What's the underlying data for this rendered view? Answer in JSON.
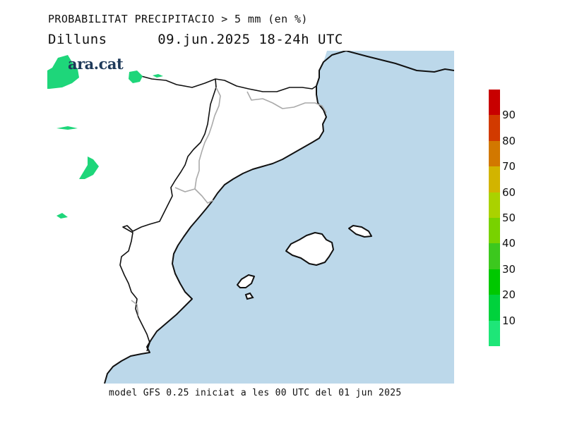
{
  "title": "PROBABILITAT PRECIPITACIO > 5 mm (en %)",
  "day": "Dilluns",
  "datetime": "09.jun.2025 18-24h UTC",
  "logo": "ara.cat",
  "footer": "model GFS 0.25 iniciat a les 00 UTC del 01 jun 2025",
  "colors": {
    "sea": "#bcd8ea",
    "land": "#ffffff",
    "coast": "#111111",
    "border": "#aaaaaa",
    "precip_10_20": "#1ed67a"
  },
  "legend": {
    "colors": [
      "#c80000",
      "#d23a00",
      "#d27800",
      "#d2b400",
      "#aad200",
      "#78d200",
      "#3cc81e",
      "#00c800",
      "#00d23c",
      "#1ee678"
    ],
    "labels": [
      "90",
      "80",
      "70",
      "60",
      "50",
      "40",
      "30",
      "20",
      "10"
    ]
  }
}
